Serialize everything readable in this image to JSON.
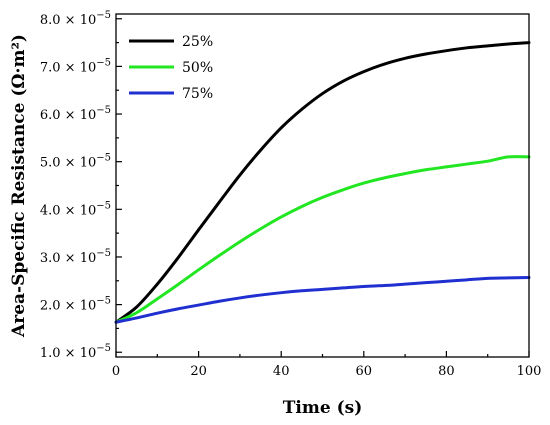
{
  "chart_data": {
    "type": "line",
    "title": "",
    "xlabel": "Time (s)",
    "ylabel": "Area-Specific Resistance (Ω·m²)",
    "xlim": [
      0,
      100
    ],
    "ylim": [
      9e-06,
      8.1e-05
    ],
    "xticks": [
      0,
      20,
      40,
      60,
      80,
      100
    ],
    "xtick_labels": [
      "0",
      "20",
      "40",
      "60",
      "80",
      "100"
    ],
    "yticks": [
      1e-05,
      2e-05,
      3e-05,
      4e-05,
      5e-05,
      6e-05,
      7e-05,
      8e-05
    ],
    "ytick_mantissas": [
      "1.0",
      "2.0",
      "3.0",
      "4.0",
      "5.0",
      "6.0",
      "7.0",
      "8.0"
    ],
    "ytick_base": "× 10",
    "ytick_exponent": "−5",
    "grid": false,
    "legend_position": "top-left",
    "series": [
      {
        "name": "25%",
        "color": "#000000",
        "x": [
          0,
          5,
          10,
          15,
          20,
          25,
          30,
          35,
          40,
          45,
          50,
          55,
          60,
          65,
          70,
          75,
          80,
          85,
          90,
          95,
          100
        ],
        "y": [
          1.63e-05,
          1.95e-05,
          2.43e-05,
          2.98e-05,
          3.57e-05,
          4.15e-05,
          4.72e-05,
          5.24e-05,
          5.71e-05,
          6.1e-05,
          6.43e-05,
          6.69e-05,
          6.89e-05,
          7.05e-05,
          7.17e-05,
          7.26e-05,
          7.33e-05,
          7.39e-05,
          7.43e-05,
          7.47e-05,
          7.5e-05
        ]
      },
      {
        "name": "50%",
        "color": "#22e622",
        "x": [
          0,
          5,
          10,
          15,
          20,
          25,
          30,
          35,
          40,
          45,
          50,
          55,
          60,
          65,
          70,
          75,
          80,
          85,
          90,
          95,
          100
        ],
        "y": [
          1.63e-05,
          1.83e-05,
          2.12e-05,
          2.42e-05,
          2.73e-05,
          3.03e-05,
          3.32e-05,
          3.59e-05,
          3.84e-05,
          4.06e-05,
          4.25e-05,
          4.41e-05,
          4.55e-05,
          4.66e-05,
          4.75e-05,
          4.83e-05,
          4.89e-05,
          4.95e-05,
          5.01e-05,
          5.1e-05,
          5.1e-05
        ]
      },
      {
        "name": "75%",
        "color": "#1f2fd0",
        "x": [
          0,
          5,
          10,
          15,
          20,
          25,
          30,
          35,
          40,
          45,
          50,
          55,
          60,
          65,
          70,
          75,
          80,
          85,
          90,
          95,
          100
        ],
        "y": [
          1.63e-05,
          1.72e-05,
          1.82e-05,
          1.91e-05,
          1.99e-05,
          2.07e-05,
          2.14e-05,
          2.2e-05,
          2.25e-05,
          2.29e-05,
          2.32e-05,
          2.35e-05,
          2.38e-05,
          2.4e-05,
          2.43e-05,
          2.46e-05,
          2.49e-05,
          2.52e-05,
          2.55e-05,
          2.56e-05,
          2.57e-05
        ]
      }
    ]
  }
}
